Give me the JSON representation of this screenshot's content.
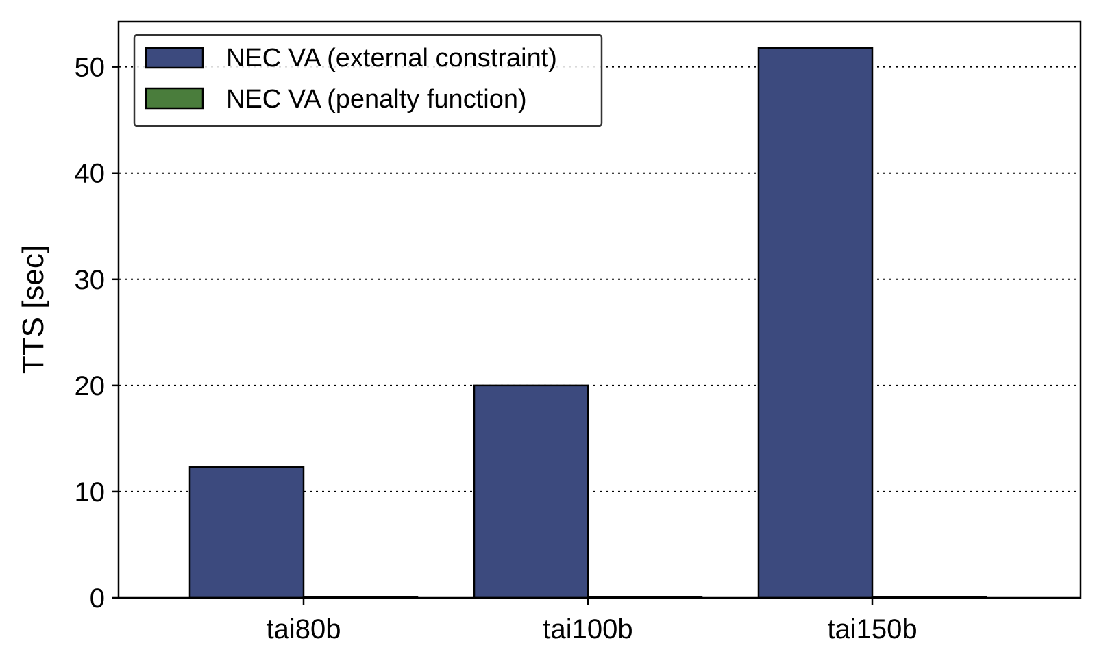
{
  "chart_data": {
    "type": "bar",
    "title": "",
    "xlabel": "",
    "ylabel": "TTS [sec]",
    "categories": [
      "tai80b",
      "tai100b",
      "tai150b"
    ],
    "series": [
      {
        "name": "NEC VA (external constraint)",
        "values": [
          12.3,
          20.0,
          51.8
        ],
        "color": "#3c4a7e"
      },
      {
        "name": "NEC VA (penalty function)",
        "values": [
          0.05,
          0.05,
          0.05
        ],
        "color": "#4a7d3c"
      }
    ],
    "ylim": [
      0,
      54.3
    ],
    "yticks": [
      0,
      10,
      20,
      30,
      40,
      50
    ],
    "grid": "y-dotted",
    "legend_position": "top-left"
  }
}
